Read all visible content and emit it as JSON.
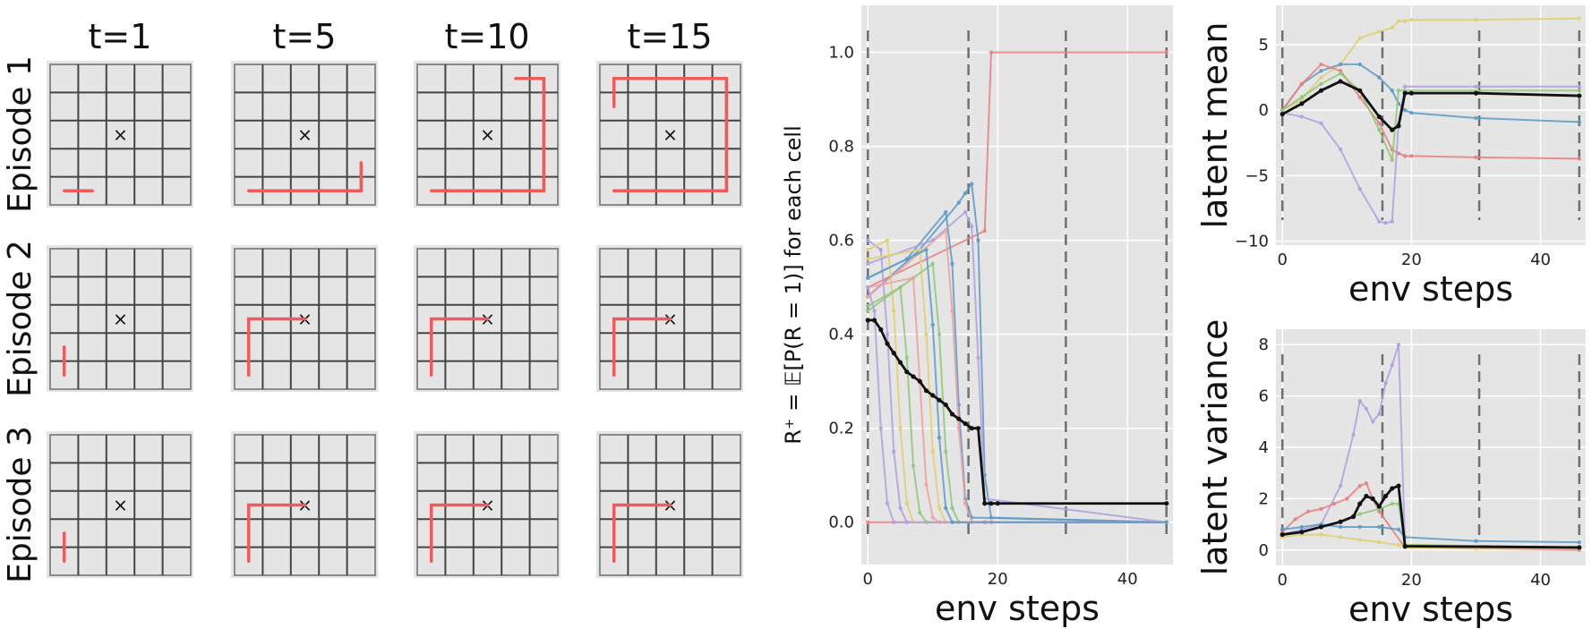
{
  "grid_panel": {
    "time_labels": [
      "t=1",
      "t=5",
      "t=10",
      "t=15"
    ],
    "episode_labels": [
      "Episode 1",
      "Episode 2",
      "Episode 3"
    ],
    "path_color": "#f05a5a",
    "goal_marker": "×"
  },
  "chart_data": [
    {
      "type": "line",
      "id": "reward",
      "ylabel": "R⁺ = 𝔼[P(R = 1)] for each cell",
      "xlabel": "env steps",
      "xlim": [
        -1,
        47
      ],
      "ylim": [
        -0.09,
        1.1
      ],
      "xticks": [
        0,
        20,
        40
      ],
      "xtick_labels": [
        "0",
        "20",
        "40"
      ],
      "yticks": [
        0.0,
        0.2,
        0.4,
        0.6,
        0.8,
        1.0
      ],
      "ytick_labels": [
        "0.0",
        "0.2",
        "0.4",
        "0.6",
        "0.8",
        "1.0"
      ],
      "vlines": [
        0,
        15.5,
        30.5,
        46
      ],
      "grid": true,
      "series": [
        {
          "color": "#e88080",
          "x": [
            0,
            18,
            19,
            46
          ],
          "y": [
            0.5,
            0.62,
            1.0,
            1.0
          ]
        },
        {
          "color": "#e88080",
          "x": [
            0,
            18,
            19,
            46
          ],
          "y": [
            0,
            0,
            0,
            0
          ]
        },
        {
          "color": "#5b9bc8",
          "x": [
            0,
            8,
            14,
            15,
            16,
            17,
            18,
            19,
            46
          ],
          "y": [
            0.48,
            0.58,
            0.68,
            0.7,
            0.72,
            0.6,
            0.1,
            0.01,
            0.0
          ]
        },
        {
          "color": "#5b9bc8",
          "x": [
            0,
            6,
            12,
            13,
            14,
            15,
            16,
            46
          ],
          "y": [
            0.52,
            0.56,
            0.66,
            0.55,
            0.25,
            0.05,
            0.01,
            0.0
          ]
        },
        {
          "color": "#b0a0e0",
          "x": [
            0,
            2,
            3,
            4,
            5,
            6,
            46
          ],
          "y": [
            0.6,
            0.58,
            0.4,
            0.15,
            0.03,
            0.0,
            0.0
          ]
        },
        {
          "color": "#b0a0e0",
          "x": [
            0,
            10,
            15,
            16,
            17,
            18,
            46
          ],
          "y": [
            0.55,
            0.6,
            0.66,
            0.63,
            0.35,
            0.05,
            0.0
          ]
        },
        {
          "color": "#e0d070",
          "x": [
            0,
            3,
            4,
            5,
            6,
            7,
            46
          ],
          "y": [
            0.58,
            0.6,
            0.45,
            0.2,
            0.04,
            0.0,
            0.0
          ]
        },
        {
          "color": "#e0d070",
          "x": [
            0,
            8,
            9,
            10,
            11,
            12,
            46
          ],
          "y": [
            0.56,
            0.58,
            0.4,
            0.15,
            0.03,
            0.0,
            0.0
          ]
        },
        {
          "color": "#90c878",
          "x": [
            0,
            5,
            6,
            7,
            8,
            9,
            46
          ],
          "y": [
            0.46,
            0.5,
            0.35,
            0.12,
            0.02,
            0.0,
            0.0
          ]
        },
        {
          "color": "#90c878",
          "x": [
            0,
            10,
            11,
            12,
            13,
            14,
            46
          ],
          "y": [
            0.45,
            0.55,
            0.4,
            0.15,
            0.03,
            0.0,
            0.0
          ]
        },
        {
          "color": "#f0a0a0",
          "x": [
            0,
            7,
            8,
            9,
            10,
            11,
            46
          ],
          "y": [
            0.5,
            0.52,
            0.3,
            0.08,
            0.01,
            0.0,
            0.0
          ]
        },
        {
          "color": "#f0a0a0",
          "x": [
            0,
            12,
            13,
            14,
            15,
            16,
            46
          ],
          "y": [
            0.48,
            0.62,
            0.45,
            0.2,
            0.04,
            0.0,
            0.0
          ]
        },
        {
          "color": "#b0a0e0",
          "x": [
            0,
            1,
            2,
            3,
            4,
            46
          ],
          "y": [
            0.5,
            0.45,
            0.2,
            0.04,
            0.0,
            0.0
          ]
        },
        {
          "color": "#5b9bc8",
          "x": [
            0,
            9,
            10,
            11,
            12,
            13,
            46
          ],
          "y": [
            0.52,
            0.58,
            0.42,
            0.18,
            0.03,
            0.0,
            0.0
          ]
        },
        {
          "color": "#111111",
          "x": [
            0,
            1,
            2,
            3,
            4,
            5,
            6,
            7,
            8,
            9,
            10,
            11,
            12,
            13,
            14,
            15,
            16,
            17,
            18,
            19,
            20,
            46
          ],
          "y": [
            0.43,
            0.43,
            0.41,
            0.38,
            0.36,
            0.34,
            0.32,
            0.31,
            0.3,
            0.28,
            0.27,
            0.26,
            0.25,
            0.23,
            0.22,
            0.21,
            0.2,
            0.2,
            0.04,
            0.04,
            0.04,
            0.04
          ]
        }
      ]
    },
    {
      "type": "line",
      "id": "latent-mean",
      "ylabel": "latent mean",
      "xlabel": "env steps",
      "xlim": [
        -1,
        47
      ],
      "ylim": [
        -10.3,
        8
      ],
      "xticks": [
        0,
        20,
        40
      ],
      "xtick_labels": [
        "0",
        "20",
        "40"
      ],
      "yticks": [
        -10,
        -5,
        0,
        5
      ],
      "ytick_labels": [
        "−10",
        "−5",
        "0",
        "5"
      ],
      "vlines": [
        0,
        15.5,
        30.5,
        46
      ],
      "grid": true,
      "series": [
        {
          "color": "#e0d070",
          "x": [
            0,
            3,
            6,
            9,
            12,
            15,
            17,
            18,
            19,
            20,
            30,
            46
          ],
          "y": [
            0,
            0.8,
            2.5,
            3.5,
            5.5,
            6.0,
            6.3,
            6.8,
            6.8,
            6.9,
            6.9,
            7.0
          ]
        },
        {
          "color": "#5b9bc8",
          "x": [
            0,
            3,
            6,
            9,
            12,
            15,
            17,
            18,
            19,
            20,
            30,
            46
          ],
          "y": [
            0,
            2.0,
            3.0,
            3.5,
            3.5,
            2.5,
            1.5,
            0.5,
            0.0,
            -0.2,
            -0.6,
            -0.9
          ]
        },
        {
          "color": "#e88080",
          "x": [
            0,
            3,
            6,
            9,
            12,
            15,
            17,
            18,
            19,
            20,
            30,
            46
          ],
          "y": [
            0,
            2.0,
            3.5,
            3.0,
            1.0,
            -1.0,
            -3.0,
            -3.3,
            -3.5,
            -3.5,
            -3.6,
            -3.7
          ]
        },
        {
          "color": "#90c878",
          "x": [
            0,
            3,
            6,
            9,
            12,
            15,
            17,
            18,
            46
          ],
          "y": [
            0,
            1.0,
            2.0,
            2.8,
            1.5,
            -1.5,
            -3.8,
            1.5,
            1.5
          ]
        },
        {
          "color": "#b0a0e0",
          "x": [
            0,
            3,
            6,
            9,
            12,
            15,
            16,
            17,
            18,
            19,
            30,
            46
          ],
          "y": [
            -0.2,
            -0.5,
            -1.0,
            -3.0,
            -6.0,
            -8.5,
            -8.6,
            -8.5,
            -1.0,
            1.8,
            1.8,
            1.8
          ]
        },
        {
          "color": "#111111",
          "x": [
            0,
            3,
            6,
            9,
            12,
            15,
            17,
            18,
            19,
            20,
            30,
            46
          ],
          "y": [
            -0.3,
            0.5,
            1.5,
            2.2,
            1.5,
            -0.5,
            -1.5,
            -1.2,
            1.3,
            1.3,
            1.3,
            1.1
          ]
        }
      ]
    },
    {
      "type": "line",
      "id": "latent-variance",
      "ylabel": "latent variance",
      "xlabel": "env steps",
      "xlim": [
        -1,
        47
      ],
      "ylim": [
        -0.6,
        8.6
      ],
      "xticks": [
        0,
        20,
        40
      ],
      "xtick_labels": [
        "0",
        "20",
        "40"
      ],
      "yticks": [
        0,
        2,
        4,
        6,
        8
      ],
      "ytick_labels": [
        "0",
        "2",
        "4",
        "6",
        "8"
      ],
      "vlines": [
        0,
        15.5,
        30.5,
        46
      ],
      "grid": true,
      "series": [
        {
          "color": "#b0a0e0",
          "x": [
            0,
            3,
            6,
            9,
            11,
            12,
            13,
            14,
            15,
            16,
            17,
            18,
            19,
            46
          ],
          "y": [
            0.6,
            0.8,
            1.0,
            2.5,
            4.5,
            5.8,
            5.5,
            5.0,
            5.3,
            6.5,
            7.2,
            8.0,
            0.2,
            0.1
          ]
        },
        {
          "color": "#e88080",
          "x": [
            0,
            2,
            4,
            6,
            8,
            10,
            12,
            13,
            14,
            15,
            19,
            46
          ],
          "y": [
            0.7,
            1.2,
            1.5,
            1.6,
            1.8,
            2.0,
            2.5,
            2.6,
            2.0,
            1.5,
            0.1,
            0.0
          ]
        },
        {
          "color": "#90c878",
          "x": [
            0,
            3,
            6,
            9,
            12,
            15,
            17,
            18,
            19,
            46
          ],
          "y": [
            0.6,
            0.7,
            0.9,
            1.1,
            1.4,
            1.6,
            1.8,
            1.8,
            0.2,
            0.1
          ]
        },
        {
          "color": "#5b9bc8",
          "x": [
            0,
            3,
            6,
            9,
            12,
            15,
            18,
            19,
            30,
            46
          ],
          "y": [
            0.8,
            0.9,
            1.0,
            0.9,
            0.9,
            0.9,
            0.8,
            0.5,
            0.35,
            0.3
          ]
        },
        {
          "color": "#e0d070",
          "x": [
            0,
            3,
            6,
            9,
            12,
            15,
            18,
            20,
            30,
            46
          ],
          "y": [
            0.5,
            0.6,
            0.6,
            0.5,
            0.4,
            0.3,
            0.2,
            0.1,
            0.05,
            0.05
          ]
        },
        {
          "color": "#111111",
          "x": [
            0,
            3,
            6,
            9,
            11,
            12,
            13,
            14,
            15,
            16,
            17,
            18,
            19,
            46
          ],
          "y": [
            0.6,
            0.7,
            0.9,
            1.1,
            1.3,
            1.8,
            2.1,
            2.0,
            1.7,
            2.1,
            2.4,
            2.5,
            0.15,
            0.1
          ]
        }
      ]
    }
  ]
}
